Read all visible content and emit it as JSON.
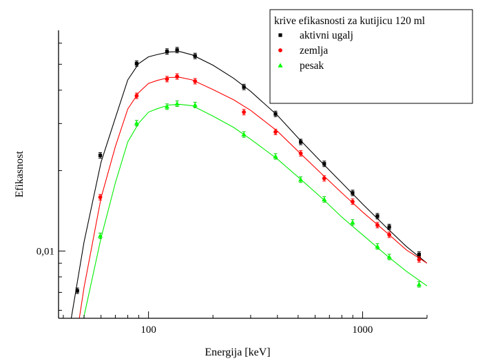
{
  "chart_data": {
    "type": "scatter",
    "title": "krive efikasnosti za kutijicu 120 ml",
    "xlabel": "Energija [keV]",
    "ylabel": "Efikasnost",
    "x_scale": "log",
    "y_scale": "log",
    "xlim": [
      38,
      2000
    ],
    "ylim": [
      0.0056,
      0.067
    ],
    "x_ticks": [
      {
        "value": 100,
        "label": "100"
      },
      {
        "value": 1000,
        "label": "1000"
      }
    ],
    "y_ticks": [
      {
        "value": 0.01,
        "label": "0,01"
      }
    ],
    "grid": false,
    "legend_position": "top-right",
    "series": [
      {
        "name": "aktivni ugalj",
        "color": "#000000",
        "marker": "square",
        "points": [
          {
            "x": 46.5,
            "y": 0.0071
          },
          {
            "x": 59.5,
            "y": 0.0228
          },
          {
            "x": 88,
            "y": 0.0503
          },
          {
            "x": 122,
            "y": 0.0558
          },
          {
            "x": 136,
            "y": 0.0565
          },
          {
            "x": 165,
            "y": 0.0537
          },
          {
            "x": 279,
            "y": 0.0411
          },
          {
            "x": 392,
            "y": 0.0326
          },
          {
            "x": 514,
            "y": 0.0256
          },
          {
            "x": 662,
            "y": 0.0212
          },
          {
            "x": 898,
            "y": 0.0165
          },
          {
            "x": 1173,
            "y": 0.0135
          },
          {
            "x": 1332,
            "y": 0.0123
          },
          {
            "x": 1836,
            "y": 0.0097
          }
        ],
        "fit": [
          {
            "x": 42,
            "y": 0.0047
          },
          {
            "x": 50,
            "y": 0.0108
          },
          {
            "x": 60,
            "y": 0.0215
          },
          {
            "x": 70,
            "y": 0.0315
          },
          {
            "x": 80,
            "y": 0.0437
          },
          {
            "x": 90,
            "y": 0.0503
          },
          {
            "x": 100,
            "y": 0.0533
          },
          {
            "x": 110,
            "y": 0.0544
          },
          {
            "x": 125,
            "y": 0.0556
          },
          {
            "x": 140,
            "y": 0.0558
          },
          {
            "x": 160,
            "y": 0.0542
          },
          {
            "x": 200,
            "y": 0.0496
          },
          {
            "x": 250,
            "y": 0.0443
          },
          {
            "x": 300,
            "y": 0.0396
          },
          {
            "x": 400,
            "y": 0.0322
          },
          {
            "x": 500,
            "y": 0.0265
          },
          {
            "x": 650,
            "y": 0.0213
          },
          {
            "x": 800,
            "y": 0.018
          },
          {
            "x": 1000,
            "y": 0.015
          },
          {
            "x": 1300,
            "y": 0.0122
          },
          {
            "x": 1600,
            "y": 0.0104
          },
          {
            "x": 2000,
            "y": 0.009
          }
        ]
      },
      {
        "name": "zemlja",
        "color": "#ff0000",
        "marker": "circle",
        "points": [
          {
            "x": 59.5,
            "y": 0.0159
          },
          {
            "x": 88,
            "y": 0.0381
          },
          {
            "x": 122,
            "y": 0.044
          },
          {
            "x": 136,
            "y": 0.045
          },
          {
            "x": 165,
            "y": 0.0432
          },
          {
            "x": 279,
            "y": 0.0331
          },
          {
            "x": 392,
            "y": 0.0279
          },
          {
            "x": 514,
            "y": 0.0232
          },
          {
            "x": 662,
            "y": 0.0187
          },
          {
            "x": 898,
            "y": 0.0153
          },
          {
            "x": 1173,
            "y": 0.0125
          },
          {
            "x": 1332,
            "y": 0.0115
          },
          {
            "x": 1836,
            "y": 0.0093
          }
        ],
        "fit": [
          {
            "x": 45,
            "y": 0.0042
          },
          {
            "x": 50,
            "y": 0.0073
          },
          {
            "x": 60,
            "y": 0.0158
          },
          {
            "x": 70,
            "y": 0.0246
          },
          {
            "x": 80,
            "y": 0.034
          },
          {
            "x": 90,
            "y": 0.0392
          },
          {
            "x": 100,
            "y": 0.0424
          },
          {
            "x": 110,
            "y": 0.0435
          },
          {
            "x": 125,
            "y": 0.0446
          },
          {
            "x": 140,
            "y": 0.0447
          },
          {
            "x": 160,
            "y": 0.0437
          },
          {
            "x": 200,
            "y": 0.0402
          },
          {
            "x": 250,
            "y": 0.0368
          },
          {
            "x": 300,
            "y": 0.0336
          },
          {
            "x": 400,
            "y": 0.0281
          },
          {
            "x": 500,
            "y": 0.0236
          },
          {
            "x": 650,
            "y": 0.0193
          },
          {
            "x": 800,
            "y": 0.0165
          },
          {
            "x": 1000,
            "y": 0.014
          },
          {
            "x": 1300,
            "y": 0.0117
          },
          {
            "x": 1600,
            "y": 0.0101
          },
          {
            "x": 2000,
            "y": 0.009
          }
        ]
      },
      {
        "name": "pesak",
        "color": "#00ff00",
        "marker": "triangle",
        "points": [
          {
            "x": 59.5,
            "y": 0.0114
          },
          {
            "x": 88,
            "y": 0.0301
          },
          {
            "x": 122,
            "y": 0.0347
          },
          {
            "x": 136,
            "y": 0.0356
          },
          {
            "x": 165,
            "y": 0.0352
          },
          {
            "x": 279,
            "y": 0.0273
          },
          {
            "x": 392,
            "y": 0.0226
          },
          {
            "x": 514,
            "y": 0.0185
          },
          {
            "x": 662,
            "y": 0.0156
          },
          {
            "x": 898,
            "y": 0.0128
          },
          {
            "x": 1173,
            "y": 0.0104
          },
          {
            "x": 1332,
            "y": 0.0095
          },
          {
            "x": 1836,
            "y": 0.0075
          }
        ],
        "fit": [
          {
            "x": 47,
            "y": 0.004
          },
          {
            "x": 50,
            "y": 0.0057
          },
          {
            "x": 60,
            "y": 0.0112
          },
          {
            "x": 70,
            "y": 0.018
          },
          {
            "x": 80,
            "y": 0.0256
          },
          {
            "x": 90,
            "y": 0.0301
          },
          {
            "x": 100,
            "y": 0.0331
          },
          {
            "x": 110,
            "y": 0.0341
          },
          {
            "x": 125,
            "y": 0.0352
          },
          {
            "x": 140,
            "y": 0.0354
          },
          {
            "x": 160,
            "y": 0.035
          },
          {
            "x": 200,
            "y": 0.032
          },
          {
            "x": 250,
            "y": 0.029
          },
          {
            "x": 300,
            "y": 0.0262
          },
          {
            "x": 400,
            "y": 0.0221
          },
          {
            "x": 500,
            "y": 0.0189
          },
          {
            "x": 650,
            "y": 0.0157
          },
          {
            "x": 800,
            "y": 0.0134
          },
          {
            "x": 1000,
            "y": 0.0115
          },
          {
            "x": 1300,
            "y": 0.0096
          },
          {
            "x": 1600,
            "y": 0.0084
          },
          {
            "x": 2000,
            "y": 0.0074
          }
        ]
      }
    ]
  }
}
